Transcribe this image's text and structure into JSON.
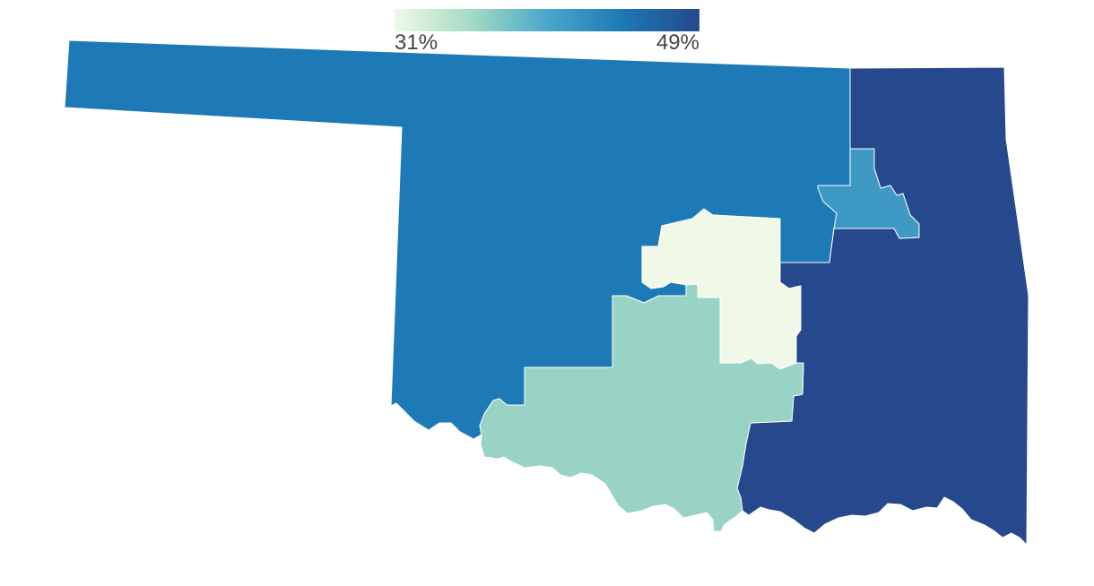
{
  "legend": {
    "min_label": "31%",
    "max_label": "49%",
    "min_value": 31,
    "max_value": 49,
    "colors": [
      "#f0f9e8",
      "#a4dac4",
      "#4ba7cb",
      "#1c78b5",
      "#25498c"
    ]
  },
  "chart_data": {
    "type": "choropleth",
    "title": "",
    "regions": [
      {
        "id": "district-3",
        "value": 44.3
      },
      {
        "id": "district-2",
        "value": 49.0
      },
      {
        "id": "district-1",
        "value": 41.2
      },
      {
        "id": "district-5",
        "value": 31.0
      },
      {
        "id": "district-4",
        "value": 36.1
      }
    ]
  }
}
